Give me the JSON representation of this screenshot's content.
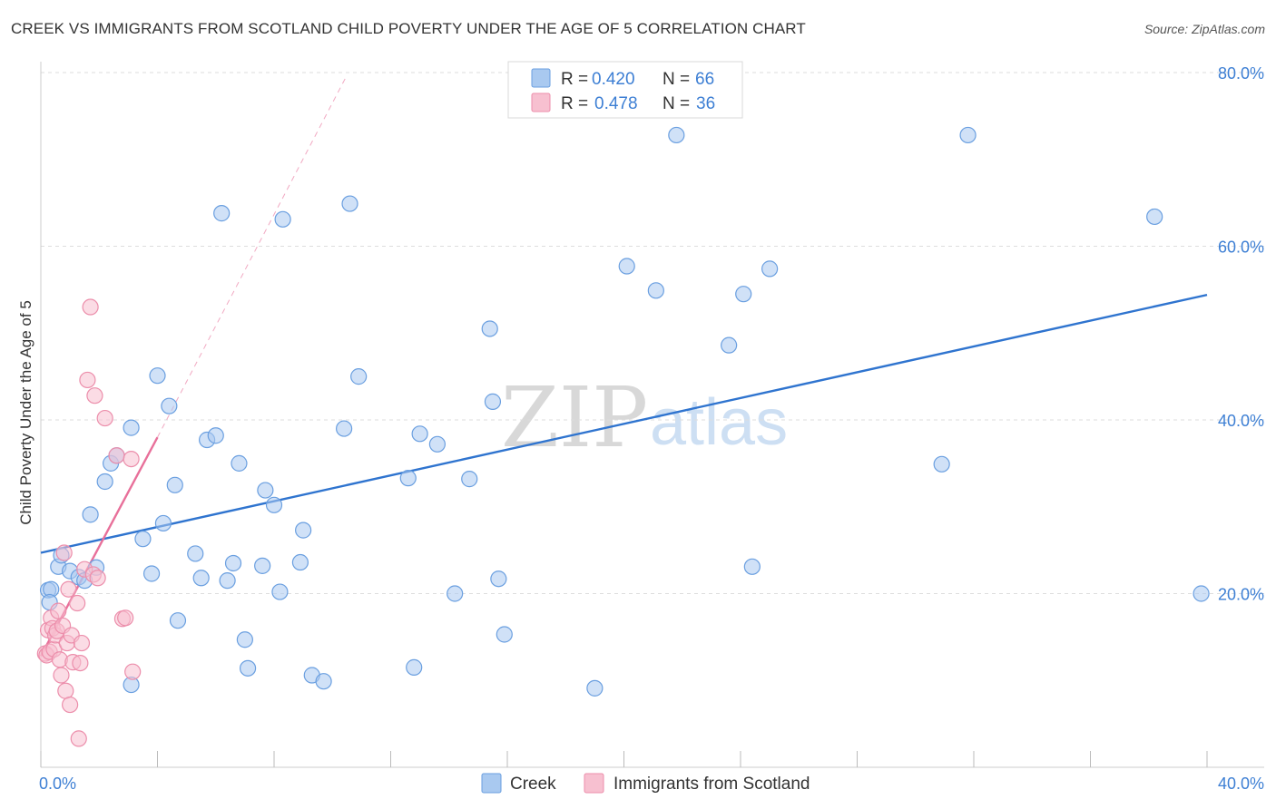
{
  "title": "CREEK VS IMMIGRANTS FROM SCOTLAND CHILD POVERTY UNDER THE AGE OF 5 CORRELATION CHART",
  "source": "Source: ZipAtlas.com",
  "watermark": {
    "zip": "ZIP",
    "atlas": "atlas"
  },
  "colors": {
    "creek_fill": "#a9c9f0",
    "creek_stroke": "#6a9fe0",
    "creek_line": "#2f74cf",
    "scot_fill": "#f7c0d0",
    "scot_stroke": "#ec8eab",
    "scot_line": "#e8709a",
    "tick_label": "#3d7fd4",
    "grid": "#dddddd"
  },
  "legend": {
    "rows": [
      {
        "r_label": "R = ",
        "r_value": "0.420",
        "n_label": "N = ",
        "n_value": "66"
      },
      {
        "r_label": "R = ",
        "r_value": "0.478",
        "n_label": "N = ",
        "n_value": "36"
      }
    ]
  },
  "bottom_legend": [
    "Creek",
    "Immigrants from Scotland"
  ],
  "chart_data": {
    "type": "scatter",
    "title": "CREEK VS IMMIGRANTS FROM SCOTLAND CHILD POVERTY UNDER THE AGE OF 5 CORRELATION CHART",
    "xlabel": "",
    "ylabel": "Child Poverty Under the Age of 5",
    "xlim": [
      0,
      40
    ],
    "ylim": [
      0,
      80
    ],
    "x_tick_labels": [
      {
        "value": 0,
        "label": "0.0%"
      },
      {
        "value": 40,
        "label": "40.0%"
      }
    ],
    "y_tick_labels": [
      {
        "value": 20,
        "label": "20.0%"
      },
      {
        "value": 40,
        "label": "40.0%"
      },
      {
        "value": 60,
        "label": "60.0%"
      },
      {
        "value": 80,
        "label": "80.0%"
      }
    ],
    "series": [
      {
        "name": "Creek",
        "r": 0.42,
        "n": 66,
        "trend": {
          "x0": 0,
          "y0": 24.7,
          "x1": 40,
          "y1": 54.4,
          "style": "solid"
        },
        "points": [
          [
            0.25,
            20.4
          ],
          [
            0.35,
            20.5
          ],
          [
            0.3,
            19.0
          ],
          [
            0.6,
            23.1
          ],
          [
            0.7,
            24.4
          ],
          [
            1.0,
            22.6
          ],
          [
            1.3,
            21.9
          ],
          [
            1.5,
            21.5
          ],
          [
            1.9,
            23.0
          ],
          [
            1.7,
            29.1
          ],
          [
            2.2,
            32.9
          ],
          [
            2.4,
            35.0
          ],
          [
            2.6,
            35.9
          ],
          [
            3.1,
            39.1
          ],
          [
            3.5,
            26.3
          ],
          [
            3.8,
            22.3
          ],
          [
            3.1,
            9.5
          ],
          [
            4.0,
            45.1
          ],
          [
            4.2,
            28.1
          ],
          [
            4.4,
            41.6
          ],
          [
            4.6,
            32.5
          ],
          [
            4.7,
            16.9
          ],
          [
            5.3,
            24.6
          ],
          [
            5.5,
            21.8
          ],
          [
            5.7,
            37.7
          ],
          [
            6.0,
            38.2
          ],
          [
            6.2,
            63.8
          ],
          [
            6.4,
            21.5
          ],
          [
            6.6,
            23.5
          ],
          [
            6.8,
            35.0
          ],
          [
            7.0,
            14.7
          ],
          [
            7.1,
            11.4
          ],
          [
            7.6,
            23.2
          ],
          [
            7.7,
            31.9
          ],
          [
            8.0,
            30.2
          ],
          [
            8.2,
            20.2
          ],
          [
            8.3,
            63.1
          ],
          [
            8.9,
            23.6
          ],
          [
            9.0,
            27.3
          ],
          [
            9.3,
            10.6
          ],
          [
            9.7,
            9.9
          ],
          [
            10.4,
            39.0
          ],
          [
            10.6,
            64.9
          ],
          [
            10.9,
            45.0
          ],
          [
            12.6,
            33.3
          ],
          [
            12.8,
            11.5
          ],
          [
            13.0,
            38.4
          ],
          [
            13.6,
            37.2
          ],
          [
            14.2,
            20.0
          ],
          [
            14.7,
            33.2
          ],
          [
            15.4,
            50.5
          ],
          [
            15.5,
            42.1
          ],
          [
            15.7,
            21.7
          ],
          [
            15.9,
            15.3
          ],
          [
            19.0,
            9.1
          ],
          [
            20.1,
            57.7
          ],
          [
            21.1,
            54.9
          ],
          [
            21.8,
            72.8
          ],
          [
            23.6,
            48.6
          ],
          [
            24.1,
            54.5
          ],
          [
            24.4,
            23.1
          ],
          [
            25.0,
            57.4
          ],
          [
            30.9,
            34.9
          ],
          [
            31.8,
            72.8
          ],
          [
            38.2,
            63.4
          ],
          [
            39.8,
            20.0
          ]
        ]
      },
      {
        "name": "Immigrants from Scotland",
        "r": 0.478,
        "n": 36,
        "trend": {
          "x0": 0,
          "y0": 12.8,
          "x1": 4.0,
          "y1": 38.0,
          "style": "solid",
          "extended_to": {
            "x": 10.5,
            "y": 79.7,
            "style": "dashed"
          }
        },
        "points": [
          [
            0.15,
            13.1
          ],
          [
            0.2,
            12.9
          ],
          [
            0.25,
            15.8
          ],
          [
            0.3,
            13.3
          ],
          [
            0.35,
            17.2
          ],
          [
            0.4,
            16.0
          ],
          [
            0.45,
            13.6
          ],
          [
            0.5,
            15.2
          ],
          [
            0.55,
            15.7
          ],
          [
            0.6,
            18.0
          ],
          [
            0.65,
            12.4
          ],
          [
            0.7,
            10.6
          ],
          [
            0.75,
            16.3
          ],
          [
            0.8,
            24.7
          ],
          [
            0.85,
            8.8
          ],
          [
            0.9,
            14.3
          ],
          [
            0.95,
            20.5
          ],
          [
            1.0,
            7.2
          ],
          [
            1.05,
            15.2
          ],
          [
            1.1,
            12.1
          ],
          [
            1.25,
            18.9
          ],
          [
            1.3,
            3.3
          ],
          [
            1.35,
            12.0
          ],
          [
            1.4,
            14.3
          ],
          [
            1.5,
            22.8
          ],
          [
            1.6,
            44.6
          ],
          [
            1.7,
            53.0
          ],
          [
            1.8,
            22.2
          ],
          [
            1.85,
            42.8
          ],
          [
            1.95,
            21.8
          ],
          [
            2.2,
            40.2
          ],
          [
            2.6,
            35.9
          ],
          [
            2.8,
            17.1
          ],
          [
            2.9,
            17.2
          ],
          [
            3.1,
            35.5
          ],
          [
            3.15,
            11.0
          ]
        ]
      }
    ]
  }
}
